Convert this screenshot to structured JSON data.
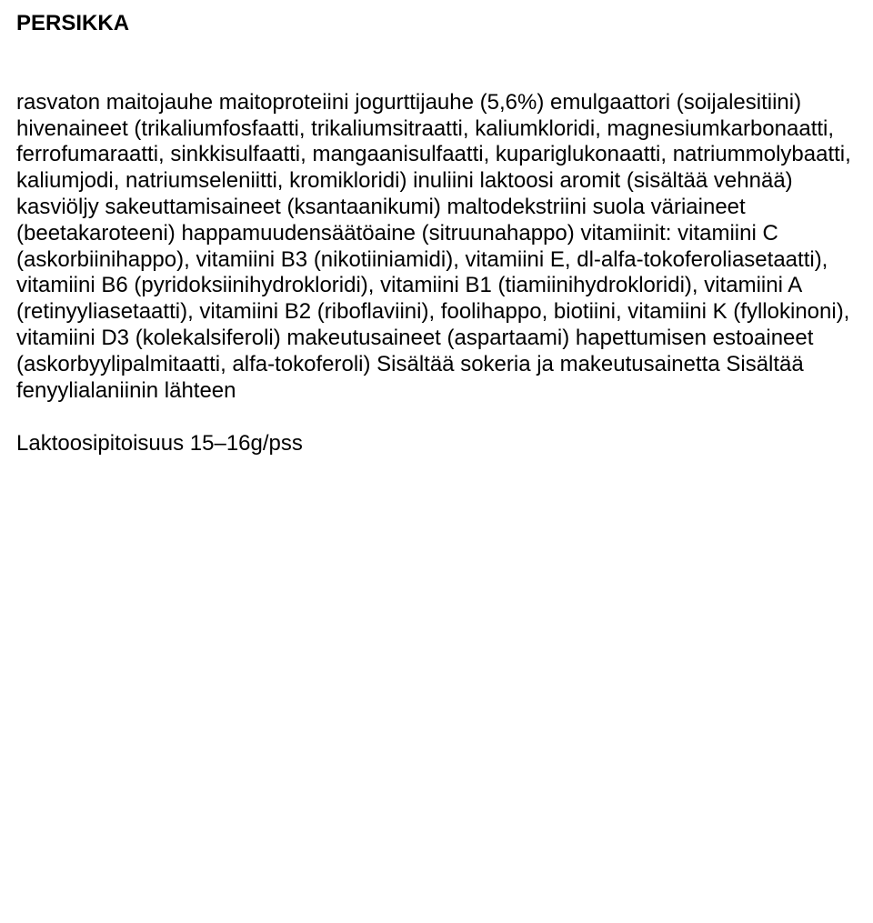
{
  "title": "PERSIKKA",
  "ingredients_block": "rasvaton maitojauhe\nmaitoproteiini\njogurttijauhe (5,6%)\nemulgaattori (soijalesitiini)\nhivenaineet (trikaliumfosfaatti, trikaliumsitraatti, kaliumkloridi, magnesiumkarbonaatti, ferrofumaraatti, sinkkisulfaatti, mangaanisulfaatti, kupariglukonaatti, natriummolybaatti, kaliumjodi, natriumseleniitti, kromikloridi)\ninuliini\nlaktoosi\naromit (sisältää vehnää)\nkasviöljy\nsakeuttamisaineet (ksantaanikumi)\nmaltodekstriini\nsuola\nväriaineet (beetakaroteeni)\nhappamuudensäätöaine (sitruunahappo)\nvitamiinit: vitamiini C (askorbiinihappo), vitamiini B3 (nikotiiniamidi), vitamiini E, dl-alfa-tokoferoliasetaatti), vitamiini B6 (pyridoksiinihydrokloridi), vitamiini B1 (tiamiinihydrokloridi), vitamiini A (retinyyliasetaatti), vitamiini B2 (riboflaviini), foolihappo, biotiini, vitamiini K (fyllokinoni), vitamiini D3 (kolekalsiferoli)\nmakeutusaineet (aspartaami)\nhapettumisen estoaineet (askorbyylipalmitaatti, alfa-tokoferoli)\nSisältää sokeria ja makeutusainetta\nSisältää fenyylialaniinin lähteen",
  "lactose_note": "Laktoosipitoisuus 15–16g/pss",
  "colors": {
    "text": "#000000",
    "background": "#ffffff"
  },
  "typography": {
    "font_family": "Arial, Helvetica, sans-serif",
    "base_fontsize_pt": 18,
    "title_fontweight": 700,
    "body_fontweight": 400
  }
}
